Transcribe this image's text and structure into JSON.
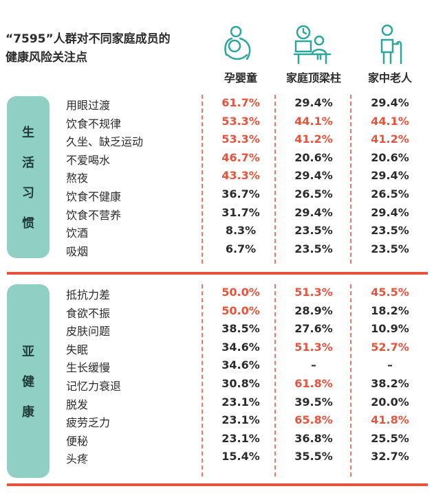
{
  "title_line1": "“7595”人群对不同家庭成员的",
  "title_line2": "健康风险关注点",
  "columns": [
    "孕婴童",
    "家庭顶梁柱",
    "家中老人"
  ],
  "colors": {
    "accent": "#e8533d",
    "teal": "#8fcfc4",
    "text": "#2b2b2b"
  },
  "chart_data": {
    "type": "table",
    "groups": [
      {
        "name": "生活习惯",
        "rows": [
          {
            "label": "用眼过渡",
            "values": [
              "61.7%",
              "29.4%",
              "29.4%"
            ],
            "highlight": [
              true,
              false,
              false
            ]
          },
          {
            "label": "饮食不规律",
            "values": [
              "53.3%",
              "44.1%",
              "44.1%"
            ],
            "highlight": [
              true,
              true,
              true
            ]
          },
          {
            "label": "久坐、缺乏运动",
            "values": [
              "53.3%",
              "41.2%",
              "41.2%"
            ],
            "highlight": [
              true,
              true,
              true
            ]
          },
          {
            "label": "不爱喝水",
            "values": [
              "46.7%",
              "20.6%",
              "20.6%"
            ],
            "highlight": [
              true,
              false,
              false
            ]
          },
          {
            "label": "熬夜",
            "values": [
              "43.3%",
              "29.4%",
              "29.4%"
            ],
            "highlight": [
              true,
              false,
              false
            ]
          },
          {
            "label": "饮食不健康",
            "values": [
              "36.7%",
              "26.5%",
              "26.5%"
            ],
            "highlight": [
              false,
              false,
              false
            ]
          },
          {
            "label": "饮食不营养",
            "values": [
              "31.7%",
              "29.4%",
              "29.4%"
            ],
            "highlight": [
              false,
              false,
              false
            ]
          },
          {
            "label": "饮酒",
            "values": [
              "8.3%",
              "23.5%",
              "23.5%"
            ],
            "highlight": [
              false,
              false,
              false
            ]
          },
          {
            "label": "吸烟",
            "values": [
              "6.7%",
              "23.5%",
              "23.5%"
            ],
            "highlight": [
              false,
              false,
              false
            ]
          }
        ]
      },
      {
        "name": "亚健康",
        "rows": [
          {
            "label": "抵抗力差",
            "values": [
              "50.0%",
              "51.3%",
              "45.5%"
            ],
            "highlight": [
              true,
              true,
              true
            ]
          },
          {
            "label": "食欲不振",
            "values": [
              "50.0%",
              "28.9%",
              "18.2%"
            ],
            "highlight": [
              true,
              false,
              false
            ]
          },
          {
            "label": "皮肤问题",
            "values": [
              "38.5%",
              "27.6%",
              "10.9%"
            ],
            "highlight": [
              false,
              false,
              false
            ]
          },
          {
            "label": "失眠",
            "values": [
              "34.6%",
              "51.3%",
              "52.7%"
            ],
            "highlight": [
              false,
              true,
              true
            ]
          },
          {
            "label": "生长缓慢",
            "values": [
              "34.6%",
              "–",
              "–"
            ],
            "highlight": [
              false,
              false,
              false
            ]
          },
          {
            "label": "记忆力衰退",
            "values": [
              "30.8%",
              "61.8%",
              "38.2%"
            ],
            "highlight": [
              false,
              true,
              false
            ]
          },
          {
            "label": "脱发",
            "values": [
              "23.1%",
              "39.5%",
              "20.0%"
            ],
            "highlight": [
              false,
              false,
              false
            ]
          },
          {
            "label": "疲劳乏力",
            "values": [
              "23.1%",
              "65.8%",
              "41.8%"
            ],
            "highlight": [
              false,
              true,
              true
            ]
          },
          {
            "label": "便秘",
            "values": [
              "23.1%",
              "36.8%",
              "25.5%"
            ],
            "highlight": [
              false,
              false,
              false
            ]
          },
          {
            "label": "头疼",
            "values": [
              "15.4%",
              "35.5%",
              "32.7%"
            ],
            "highlight": [
              false,
              false,
              false
            ]
          }
        ]
      }
    ]
  }
}
